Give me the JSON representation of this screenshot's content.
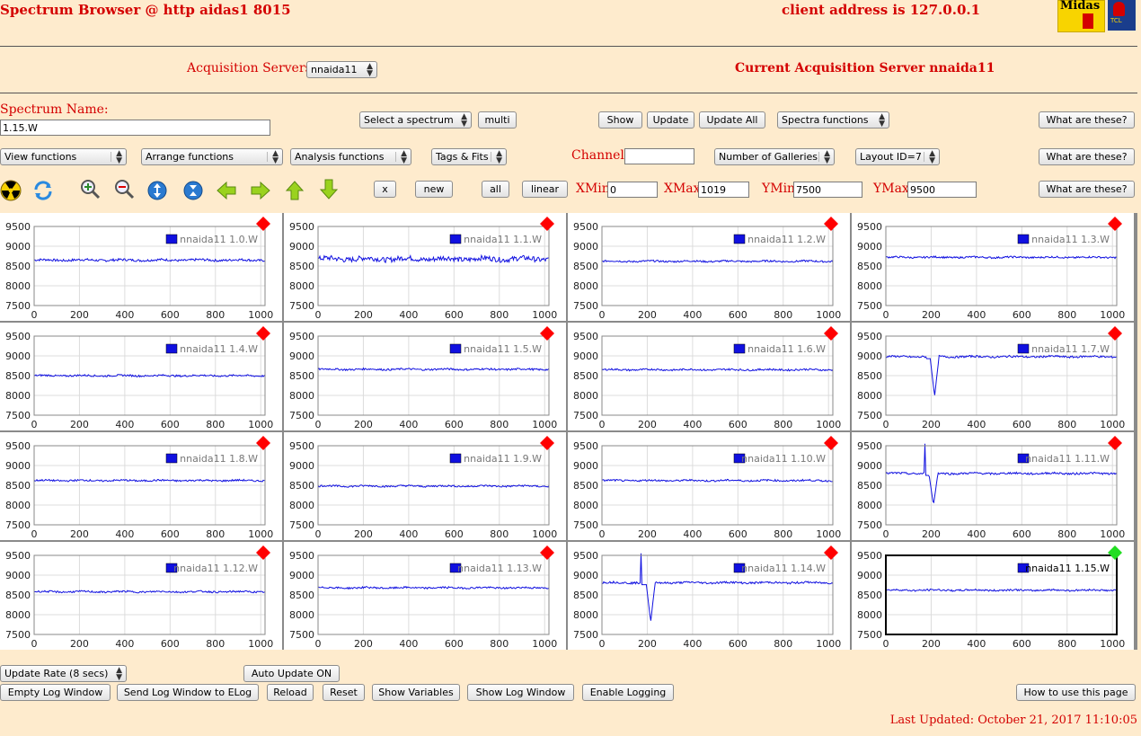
{
  "header": {
    "title": "Spectrum Browser @ http aidas1 8015",
    "client_address": "client address is 127.0.0.1",
    "logo_midas": "Midas",
    "logo_tcl": "TCL"
  },
  "acquisition": {
    "label": "Acquisition Servers",
    "server_value": "nnaida11",
    "current_label": "Current Acquisition Server nnaida11"
  },
  "spectrum": {
    "name_label": "Spectrum Name:",
    "name_value": "1.15.W",
    "select_label": "Select a spectrum",
    "multi_label": "multi",
    "show_label": "Show",
    "update_label": "Update",
    "update_all_label": "Update All",
    "spectra_functions_label": "Spectra functions",
    "what_label": "What are these?"
  },
  "functions": {
    "view": "View functions",
    "arrange": "Arrange functions",
    "analysis": "Analysis functions",
    "tags": "Tags & Fits",
    "channel_label": "Channel:",
    "channel_value": "",
    "galleries": "Number of Galleries",
    "layout": "Layout ID=7"
  },
  "toolbar": {
    "icons": [
      "radiation-icon",
      "refresh-icon",
      "zoom-in-icon",
      "zoom-out-icon",
      "expand-vertical-icon",
      "compress-vertical-icon",
      "arrow-left-icon",
      "arrow-right-icon",
      "arrow-up-icon",
      "arrow-down-icon"
    ],
    "x_label": "x",
    "new_label": "new",
    "all_label": "all",
    "linear_label": "linear",
    "xmin_label": "XMin",
    "xmin_value": "0",
    "xmax_label": "XMax",
    "xmax_value": "1019",
    "ymin_label": "YMin",
    "ymin_value": "7500",
    "ymax_label": "YMax",
    "ymax_value": "9500"
  },
  "chart_data": {
    "type": "line",
    "xlim": [
      0,
      1019
    ],
    "ylim": [
      7500,
      9500
    ],
    "xticks": [
      "0",
      "200",
      "400",
      "600",
      "800",
      "1000"
    ],
    "yticks": [
      "9500",
      "9000",
      "8500",
      "8000",
      "7500"
    ],
    "grid": true,
    "legend_position": "top-right",
    "series_color": "#1010E0",
    "panels": [
      {
        "name": "nnaida11 1.0.W",
        "baseline": 8650,
        "noise": 60,
        "marker": "red"
      },
      {
        "name": "nnaida11 1.1.W",
        "baseline": 8680,
        "noise": 130,
        "marker": "red"
      },
      {
        "name": "nnaida11 1.2.W",
        "baseline": 8620,
        "noise": 45,
        "marker": "red"
      },
      {
        "name": "nnaida11 1.3.W",
        "baseline": 8720,
        "noise": 45,
        "marker": "red"
      },
      {
        "name": "nnaida11 1.4.W",
        "baseline": 8500,
        "noise": 45,
        "marker": "red"
      },
      {
        "name": "nnaida11 1.5.W",
        "baseline": 8660,
        "noise": 45,
        "marker": "red"
      },
      {
        "name": "nnaida11 1.6.W",
        "baseline": 8650,
        "noise": 45,
        "marker": "red"
      },
      {
        "name": "nnaida11 1.7.W",
        "baseline": 8980,
        "noise": 50,
        "marker": "red",
        "spike_x": 180,
        "dip_x": 215,
        "dip_y": 7980
      },
      {
        "name": "nnaida11 1.8.W",
        "baseline": 8620,
        "noise": 45,
        "marker": "red"
      },
      {
        "name": "nnaida11 1.9.W",
        "baseline": 8480,
        "noise": 45,
        "marker": "red"
      },
      {
        "name": "nnaida11 1.10.W",
        "baseline": 8620,
        "noise": 45,
        "marker": "red"
      },
      {
        "name": "nnaida11 1.11.W",
        "baseline": 8800,
        "noise": 50,
        "marker": "red",
        "spike_x": 175,
        "dip_x": 210,
        "dip_y": 8000
      },
      {
        "name": "nnaida11 1.12.W",
        "baseline": 8580,
        "noise": 45,
        "marker": "red"
      },
      {
        "name": "nnaida11 1.13.W",
        "baseline": 8680,
        "noise": 45,
        "marker": "red"
      },
      {
        "name": "nnaida11 1.14.W",
        "baseline": 8810,
        "noise": 50,
        "marker": "red",
        "spike_x": 175,
        "dip_x": 215,
        "dip_y": 7820
      },
      {
        "name": "nnaida11 1.15.W",
        "baseline": 8620,
        "noise": 45,
        "marker": "green",
        "selected": true
      }
    ]
  },
  "bottom": {
    "update_rate": "Update Rate (8 secs)",
    "auto_update": "Auto Update ON",
    "empty_log": "Empty Log Window",
    "send_log": "Send Log Window to ELog",
    "reload": "Reload",
    "reset": "Reset",
    "show_variables": "Show Variables",
    "show_log": "Show Log Window",
    "enable_logging": "Enable Logging",
    "how_to": "How to use this page",
    "last_updated": "Last Updated: October 21, 2017 11:10:05"
  }
}
